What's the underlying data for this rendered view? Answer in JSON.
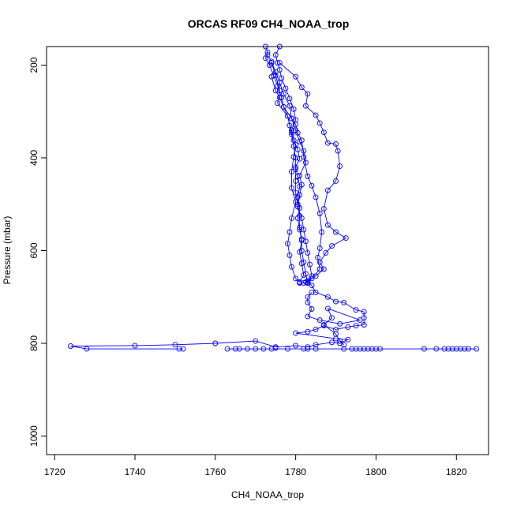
{
  "chart_data": {
    "type": "scatter",
    "title": "ORCAS RF09 CH4_NOAA_trop",
    "xlabel": "CH4_NOAA_trop",
    "ylabel": "Pressure (mbar)",
    "xlim": [
      1718,
      1828
    ],
    "ylim": [
      1040,
      160
    ],
    "y_reversed": true,
    "x_ticks": [
      1720,
      1740,
      1760,
      1780,
      1800,
      1820
    ],
    "y_ticks": [
      200,
      400,
      600,
      800,
      1000
    ],
    "series_color": "#0000ff",
    "grid": false,
    "legend": "none",
    "points": [
      [
        1772.5,
        160
      ],
      [
        1773,
        172
      ],
      [
        1772.5,
        185
      ],
      [
        1773.5,
        200
      ],
      [
        1774.5,
        222
      ],
      [
        1775.5,
        245
      ],
      [
        1776.5,
        270
      ],
      [
        1777,
        290
      ],
      [
        1778,
        310
      ],
      [
        1778.5,
        330
      ],
      [
        1779,
        350
      ],
      [
        1779.5,
        375
      ],
      [
        1780,
        400
      ],
      [
        1780,
        425
      ],
      [
        1780,
        450
      ],
      [
        1780,
        475
      ],
      [
        1780.5,
        500
      ],
      [
        1781,
        525
      ],
      [
        1781,
        550
      ],
      [
        1781.5,
        575
      ],
      [
        1781.5,
        600
      ],
      [
        1782,
        625
      ],
      [
        1782.5,
        650
      ],
      [
        1783,
        670
      ],
      [
        1776,
        160
      ],
      [
        1775,
        178
      ],
      [
        1775.5,
        195
      ],
      [
        1776,
        210
      ],
      [
        1776.5,
        228
      ],
      [
        1777.5,
        250
      ],
      [
        1778.5,
        272
      ],
      [
        1779.5,
        295
      ],
      [
        1780,
        318
      ],
      [
        1779,
        340
      ],
      [
        1779.5,
        362
      ],
      [
        1780.5,
        382
      ],
      [
        1781,
        402
      ],
      [
        1780,
        420
      ],
      [
        1780.5,
        440
      ],
      [
        1781,
        462
      ],
      [
        1780.5,
        485
      ],
      [
        1781,
        508
      ],
      [
        1780.5,
        530
      ],
      [
        1781,
        555
      ],
      [
        1781.5,
        578
      ],
      [
        1781,
        603
      ],
      [
        1781.5,
        628
      ],
      [
        1782,
        653
      ],
      [
        1781,
        668
      ],
      [
        1773,
        178
      ],
      [
        1774,
        192
      ],
      [
        1775,
        215
      ],
      [
        1776,
        238
      ],
      [
        1777,
        262
      ],
      [
        1778.5,
        288
      ],
      [
        1779,
        315
      ],
      [
        1780,
        340
      ],
      [
        1781,
        365
      ],
      [
        1782,
        385
      ],
      [
        1782.5,
        410
      ],
      [
        1781,
        438
      ],
      [
        1781.5,
        458
      ],
      [
        1781,
        480
      ],
      [
        1780.5,
        505
      ],
      [
        1781.5,
        530
      ],
      [
        1782,
        555
      ],
      [
        1782.5,
        580
      ],
      [
        1783,
        605
      ],
      [
        1783.5,
        630
      ],
      [
        1784,
        655
      ],
      [
        1782.5,
        668
      ],
      [
        1774,
        195
      ],
      [
        1775,
        222
      ],
      [
        1776,
        255
      ],
      [
        1775.5,
        282
      ],
      [
        1778,
        310
      ],
      [
        1779,
        345
      ],
      [
        1780,
        372
      ],
      [
        1779.5,
        398
      ],
      [
        1779,
        430
      ],
      [
        1779,
        465
      ],
      [
        1780,
        495
      ],
      [
        1779,
        530
      ],
      [
        1778.5,
        560
      ],
      [
        1778,
        585
      ],
      [
        1778.5,
        610
      ],
      [
        1779,
        635
      ],
      [
        1780,
        660
      ],
      [
        1781,
        668
      ],
      [
        1776,
        195
      ],
      [
        1780,
        225
      ],
      [
        1781.5,
        248
      ],
      [
        1783,
        262
      ],
      [
        1782.5,
        288
      ],
      [
        1785,
        308
      ],
      [
        1786,
        325
      ],
      [
        1787,
        345
      ],
      [
        1788,
        368
      ],
      [
        1790,
        370
      ],
      [
        1790.5,
        385
      ],
      [
        1791,
        418
      ],
      [
        1790,
        450
      ],
      [
        1788,
        470
      ],
      [
        1787,
        510
      ],
      [
        1788,
        545
      ],
      [
        1790,
        560
      ],
      [
        1792.5,
        573
      ],
      [
        1789,
        590
      ],
      [
        1787.5,
        605
      ],
      [
        1786,
        625
      ],
      [
        1787,
        640
      ],
      [
        1785,
        655
      ],
      [
        1783,
        665
      ],
      [
        1774,
        225
      ],
      [
        1775,
        255
      ],
      [
        1776,
        270
      ],
      [
        1777,
        290
      ],
      [
        1779,
        315
      ],
      [
        1780,
        328
      ],
      [
        1780.5,
        346
      ],
      [
        1781.5,
        362
      ],
      [
        1782,
        398
      ],
      [
        1783,
        440
      ],
      [
        1784,
        460
      ],
      [
        1785,
        485
      ],
      [
        1786,
        520
      ],
      [
        1786.5,
        560
      ],
      [
        1786,
        595
      ],
      [
        1785.5,
        615
      ],
      [
        1786,
        640
      ],
      [
        1784,
        660
      ],
      [
        1783,
        670
      ],
      [
        1781,
        670
      ],
      [
        1782,
        670
      ],
      [
        1783,
        668
      ],
      [
        1784,
        675
      ],
      [
        1785,
        690
      ],
      [
        1788,
        700
      ],
      [
        1790,
        710
      ],
      [
        1792,
        712
      ],
      [
        1795,
        728
      ],
      [
        1797,
        732
      ],
      [
        1797,
        745
      ],
      [
        1797,
        760
      ],
      [
        1795,
        762
      ],
      [
        1793,
        765
      ],
      [
        1790,
        770
      ],
      [
        1787,
        762
      ],
      [
        1785,
        770
      ],
      [
        1783,
        775
      ],
      [
        1780,
        778
      ],
      [
        1790,
        790
      ],
      [
        1793,
        792
      ],
      [
        1791,
        800
      ],
      [
        1789,
        798
      ],
      [
        1785,
        803
      ],
      [
        1783,
        808
      ],
      [
        1780,
        805
      ],
      [
        1775,
        808
      ],
      [
        1770,
        795
      ],
      [
        1760,
        800
      ],
      [
        1750,
        803
      ],
      [
        1740,
        805
      ],
      [
        1724,
        806
      ],
      [
        1728,
        812
      ],
      [
        1751,
        812
      ],
      [
        1752,
        812
      ],
      [
        1763,
        812
      ],
      [
        1765,
        812
      ],
      [
        1766,
        812
      ],
      [
        1768,
        812
      ],
      [
        1770,
        812
      ],
      [
        1772,
        812
      ],
      [
        1774,
        812
      ],
      [
        1775,
        810
      ],
      [
        1778,
        812
      ],
      [
        1782,
        812
      ],
      [
        1783,
        812
      ],
      [
        1785,
        812
      ],
      [
        1792,
        812
      ],
      [
        1794,
        812
      ],
      [
        1795,
        812
      ],
      [
        1796,
        812
      ],
      [
        1797,
        812
      ],
      [
        1798,
        812
      ],
      [
        1799,
        812
      ],
      [
        1800,
        812
      ],
      [
        1801,
        812
      ],
      [
        1812,
        812
      ],
      [
        1815,
        812
      ],
      [
        1817,
        812
      ],
      [
        1818,
        812
      ],
      [
        1819,
        812
      ],
      [
        1820,
        812
      ],
      [
        1821,
        812
      ],
      [
        1822,
        812
      ],
      [
        1823,
        812
      ],
      [
        1825,
        812
      ],
      [
        1788,
        725
      ],
      [
        1789,
        745
      ],
      [
        1787,
        760
      ],
      [
        1790,
        780
      ],
      [
        1791,
        795
      ],
      [
        1792,
        803
      ],
      [
        1784,
        690
      ],
      [
        1783,
        700
      ],
      [
        1783,
        712
      ],
      [
        1784,
        726
      ],
      [
        1783,
        742
      ],
      [
        1786,
        750
      ],
      [
        1791,
        758
      ],
      [
        1796,
        750
      ]
    ],
    "traces": [
      [
        [
          1772.5,
          160
        ],
        [
          1773,
          172
        ],
        [
          1772.5,
          185
        ],
        [
          1773.5,
          200
        ],
        [
          1774.5,
          222
        ],
        [
          1775.5,
          245
        ],
        [
          1776.5,
          270
        ],
        [
          1777,
          290
        ],
        [
          1778,
          310
        ],
        [
          1778.5,
          330
        ],
        [
          1779,
          350
        ],
        [
          1779.5,
          375
        ],
        [
          1780,
          400
        ],
        [
          1780,
          425
        ],
        [
          1780,
          450
        ],
        [
          1780,
          475
        ],
        [
          1780.5,
          500
        ],
        [
          1781,
          525
        ],
        [
          1781,
          550
        ],
        [
          1781.5,
          575
        ],
        [
          1781.5,
          600
        ],
        [
          1782,
          625
        ],
        [
          1782.5,
          650
        ],
        [
          1783,
          670
        ]
      ],
      [
        [
          1776,
          160
        ],
        [
          1775,
          178
        ],
        [
          1775.5,
          195
        ],
        [
          1776,
          210
        ],
        [
          1776.5,
          228
        ],
        [
          1777.5,
          250
        ],
        [
          1778.5,
          272
        ],
        [
          1779.5,
          295
        ],
        [
          1780,
          318
        ],
        [
          1779,
          340
        ],
        [
          1779.5,
          362
        ],
        [
          1780.5,
          382
        ],
        [
          1781,
          402
        ],
        [
          1780,
          420
        ],
        [
          1780.5,
          440
        ],
        [
          1781,
          462
        ],
        [
          1780.5,
          485
        ],
        [
          1781,
          508
        ],
        [
          1780.5,
          530
        ],
        [
          1781,
          555
        ],
        [
          1781.5,
          578
        ],
        [
          1781,
          603
        ],
        [
          1781.5,
          628
        ],
        [
          1782,
          653
        ],
        [
          1781,
          668
        ]
      ],
      [
        [
          1773,
          178
        ],
        [
          1774,
          192
        ],
        [
          1775,
          215
        ],
        [
          1776,
          238
        ],
        [
          1777,
          262
        ],
        [
          1778.5,
          288
        ],
        [
          1779,
          315
        ],
        [
          1780,
          340
        ],
        [
          1781,
          365
        ],
        [
          1782,
          385
        ],
        [
          1782.5,
          410
        ],
        [
          1781,
          438
        ],
        [
          1781.5,
          458
        ],
        [
          1781,
          480
        ],
        [
          1780.5,
          505
        ],
        [
          1781.5,
          530
        ],
        [
          1782,
          555
        ],
        [
          1782.5,
          580
        ],
        [
          1783,
          605
        ],
        [
          1783.5,
          630
        ],
        [
          1784,
          655
        ],
        [
          1782.5,
          668
        ]
      ],
      [
        [
          1774,
          195
        ],
        [
          1775,
          222
        ],
        [
          1776,
          255
        ],
        [
          1775.5,
          282
        ],
        [
          1778,
          310
        ],
        [
          1779,
          345
        ],
        [
          1780,
          372
        ],
        [
          1779.5,
          398
        ],
        [
          1779,
          430
        ],
        [
          1779,
          465
        ],
        [
          1780,
          495
        ],
        [
          1779,
          530
        ],
        [
          1778.5,
          560
        ],
        [
          1778,
          585
        ],
        [
          1778.5,
          610
        ],
        [
          1779,
          635
        ],
        [
          1780,
          660
        ],
        [
          1781,
          668
        ]
      ],
      [
        [
          1776,
          195
        ],
        [
          1780,
          225
        ],
        [
          1781.5,
          248
        ],
        [
          1783,
          262
        ],
        [
          1782.5,
          288
        ],
        [
          1785,
          308
        ],
        [
          1786,
          325
        ],
        [
          1787,
          345
        ],
        [
          1788,
          368
        ],
        [
          1790,
          370
        ],
        [
          1790.5,
          385
        ],
        [
          1791,
          418
        ],
        [
          1790,
          450
        ],
        [
          1788,
          470
        ],
        [
          1787,
          510
        ],
        [
          1788,
          545
        ],
        [
          1790,
          560
        ],
        [
          1792.5,
          573
        ],
        [
          1789,
          590
        ],
        [
          1787.5,
          605
        ],
        [
          1786,
          625
        ],
        [
          1787,
          640
        ],
        [
          1785,
          655
        ],
        [
          1783,
          665
        ]
      ],
      [
        [
          1774,
          225
        ],
        [
          1775,
          255
        ],
        [
          1776,
          270
        ],
        [
          1777,
          290
        ],
        [
          1779,
          315
        ],
        [
          1780,
          328
        ],
        [
          1780.5,
          346
        ],
        [
          1781.5,
          362
        ],
        [
          1782,
          398
        ],
        [
          1783,
          440
        ],
        [
          1784,
          460
        ],
        [
          1785,
          485
        ],
        [
          1786,
          520
        ],
        [
          1786.5,
          560
        ],
        [
          1786,
          595
        ],
        [
          1785.5,
          615
        ],
        [
          1786,
          640
        ],
        [
          1784,
          660
        ],
        [
          1783,
          670
        ]
      ],
      [
        [
          1781,
          670
        ],
        [
          1782,
          670
        ],
        [
          1783,
          668
        ],
        [
          1784,
          675
        ],
        [
          1785,
          690
        ],
        [
          1788,
          700
        ],
        [
          1790,
          710
        ],
        [
          1792,
          712
        ],
        [
          1795,
          728
        ],
        [
          1797,
          732
        ],
        [
          1797,
          745
        ],
        [
          1797,
          760
        ],
        [
          1795,
          762
        ],
        [
          1793,
          765
        ],
        [
          1790,
          770
        ],
        [
          1787,
          762
        ],
        [
          1785,
          770
        ],
        [
          1783,
          775
        ],
        [
          1780,
          778
        ],
        [
          1790,
          790
        ],
        [
          1793,
          792
        ],
        [
          1791,
          800
        ],
        [
          1789,
          798
        ],
        [
          1785,
          803
        ],
        [
          1783,
          808
        ],
        [
          1780,
          805
        ],
        [
          1775,
          808
        ],
        [
          1770,
          795
        ],
        [
          1760,
          800
        ],
        [
          1750,
          803
        ],
        [
          1740,
          805
        ],
        [
          1724,
          806
        ],
        [
          1728,
          812
        ],
        [
          1751,
          812
        ],
        [
          1752,
          812
        ]
      ],
      [
        [
          1763,
          812
        ],
        [
          1825,
          812
        ]
      ],
      [
        [
          1784,
          690
        ],
        [
          1783,
          700
        ],
        [
          1783,
          712
        ],
        [
          1784,
          726
        ],
        [
          1783,
          742
        ],
        [
          1786,
          750
        ],
        [
          1791,
          758
        ],
        [
          1796,
          750
        ],
        [
          1788,
          725
        ],
        [
          1789,
          745
        ],
        [
          1787,
          760
        ],
        [
          1790,
          780
        ],
        [
          1791,
          795
        ],
        [
          1792,
          803
        ]
      ]
    ]
  }
}
